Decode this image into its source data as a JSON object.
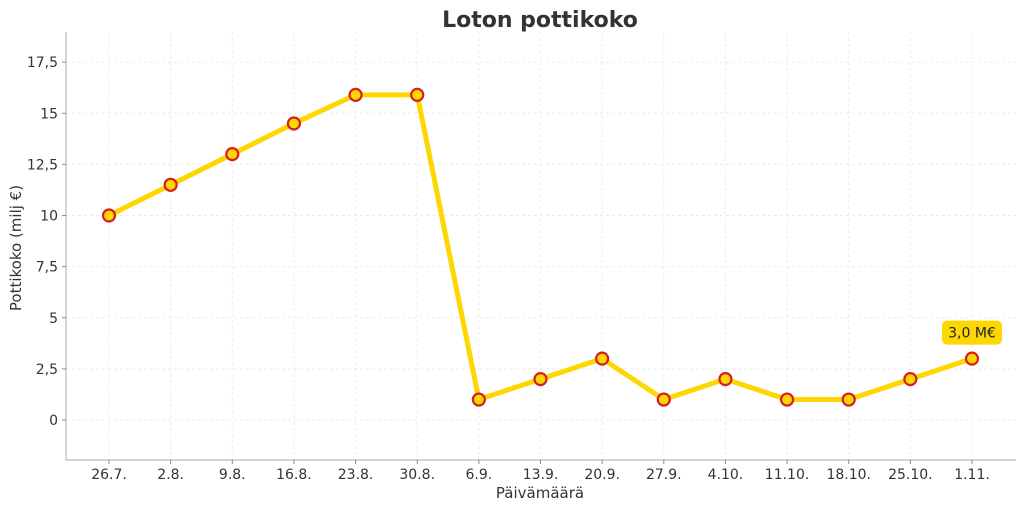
{
  "chart_data": {
    "type": "line",
    "title": "Loton pottikoko",
    "xlabel": "Päivämäärä",
    "ylabel": "Pottikoko (milj €)",
    "categories": [
      "26.7.",
      "2.8.",
      "9.8.",
      "16.8.",
      "23.8.",
      "30.8.",
      "6.9.",
      "13.9.",
      "20.9.",
      "27.9.",
      "4.10.",
      "11.10.",
      "18.10.",
      "25.10.",
      "1.11."
    ],
    "series": [
      {
        "name": "Pottikoko",
        "values": [
          10,
          11.5,
          13,
          14.5,
          15.9,
          15.9,
          1,
          2,
          3,
          1,
          2,
          1,
          1,
          2,
          3
        ]
      }
    ],
    "ylim": [
      -2,
      19
    ],
    "yticks": [
      0,
      2.5,
      5,
      7.5,
      10,
      12.5,
      15,
      17.5
    ],
    "ytick_labels": [
      "0",
      "2,5",
      "5",
      "7,5",
      "10",
      "12,5",
      "15",
      "17,5"
    ],
    "grid": true,
    "annotations": [
      {
        "category": "1.11.",
        "value": 3,
        "text": "3,0 M€"
      }
    ],
    "colors": {
      "line": "#FFD700",
      "marker_fill": "#FFD700",
      "marker_edge": "#D42020",
      "annotation_bg": "#FFD700",
      "grid": "#ECECEC",
      "spine": "#BBBBBB",
      "text": "#333333"
    }
  }
}
